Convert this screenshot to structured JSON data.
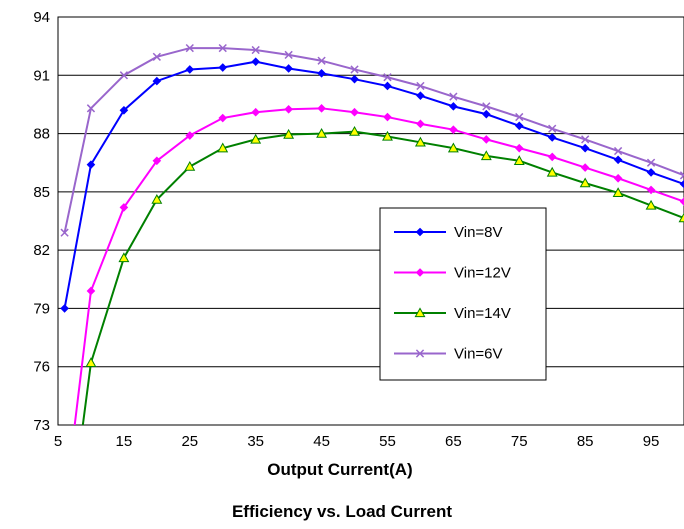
{
  "chart_data": {
    "type": "line",
    "title": "Efficiency vs. Load Current",
    "xlabel": "Output Current(A)",
    "ylabel": "",
    "xlim": [
      5,
      100
    ],
    "ylim": [
      73,
      94
    ],
    "x_ticks": [
      5,
      15,
      25,
      35,
      45,
      55,
      65,
      75,
      85,
      95
    ],
    "y_ticks": [
      73,
      76,
      79,
      82,
      85,
      88,
      91,
      94
    ],
    "grid": "horizontal",
    "legend_position": "center-right",
    "series": [
      {
        "name": "Vin=8V",
        "color": "#0000FF",
        "marker": "diamond",
        "x": [
          6,
          10,
          15,
          20,
          25,
          30,
          35,
          40,
          45,
          50,
          55,
          60,
          65,
          70,
          75,
          80,
          85,
          90,
          95,
          100
        ],
        "y": [
          79.0,
          86.4,
          89.2,
          90.7,
          91.3,
          91.4,
          91.7,
          91.35,
          91.1,
          90.8,
          90.45,
          89.95,
          89.4,
          89.0,
          88.4,
          87.8,
          87.25,
          86.65,
          86.0,
          85.4
        ]
      },
      {
        "name": "Vin=12V",
        "color": "#FF00FF",
        "marker": "diamond",
        "x": [
          7,
          10,
          15,
          20,
          25,
          30,
          35,
          40,
          45,
          50,
          55,
          60,
          65,
          70,
          75,
          80,
          85,
          90,
          95,
          100
        ],
        "y": [
          71.5,
          79.9,
          84.2,
          86.6,
          87.9,
          88.8,
          89.1,
          89.25,
          89.3,
          89.1,
          88.85,
          88.5,
          88.2,
          87.7,
          87.25,
          86.8,
          86.25,
          85.7,
          85.1,
          84.5
        ]
      },
      {
        "name": "Vin=14V",
        "color": "#008000",
        "marker_fill": "#FFFF00",
        "marker": "triangle",
        "x": [
          8,
          10,
          15,
          20,
          25,
          30,
          35,
          40,
          45,
          50,
          55,
          60,
          65,
          70,
          75,
          80,
          85,
          90,
          95,
          100
        ],
        "y": [
          71.0,
          76.2,
          81.6,
          84.6,
          86.3,
          87.25,
          87.7,
          87.95,
          88.0,
          88.1,
          87.85,
          87.55,
          87.25,
          86.85,
          86.6,
          86.0,
          85.45,
          84.95,
          84.3,
          83.65
        ]
      },
      {
        "name": "Vin=6V",
        "color": "#9966CC",
        "marker": "x",
        "x": [
          6,
          10,
          15,
          20,
          25,
          30,
          35,
          40,
          45,
          50,
          55,
          60,
          65,
          70,
          75,
          80,
          85,
          90,
          95,
          100
        ],
        "y": [
          82.9,
          89.3,
          91.0,
          91.95,
          92.4,
          92.4,
          92.3,
          92.05,
          91.75,
          91.3,
          90.9,
          90.45,
          89.9,
          89.4,
          88.85,
          88.25,
          87.7,
          87.1,
          86.5,
          85.85
        ]
      }
    ]
  }
}
